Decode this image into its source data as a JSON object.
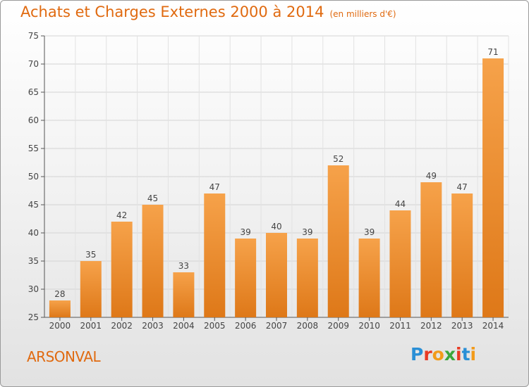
{
  "title": "Achats et Charges Externes 2000 à 2014",
  "unit_note": "(en milliers d'€)",
  "commune": "ARSONVAL",
  "logo": {
    "text": "Proxiti",
    "letters": [
      "P",
      "r",
      "o",
      "x",
      "i",
      "t",
      "i"
    ],
    "colors": [
      "#2a8fd6",
      "#e83a24",
      "#f29b1a",
      "#3aa63a",
      "#e83a24",
      "#2a8fd6",
      "#f29b1a"
    ]
  },
  "colors": {
    "accent": "#e06a10",
    "bar_top": "#f6a24a",
    "bar_bottom": "#de7818"
  },
  "chart_data": {
    "type": "bar",
    "categories": [
      "2000",
      "2001",
      "2002",
      "2003",
      "2004",
      "2005",
      "2006",
      "2007",
      "2008",
      "2009",
      "2010",
      "2011",
      "2012",
      "2013",
      "2014"
    ],
    "values": [
      28,
      35,
      42,
      45,
      33,
      47,
      39,
      40,
      39,
      52,
      39,
      44,
      49,
      47,
      71
    ],
    "data_labels": [
      "28",
      "35",
      "42",
      "45",
      "33",
      "47",
      "39",
      "40",
      "39",
      "52",
      "39",
      "44",
      "49",
      "47",
      "71"
    ],
    "ylim": [
      25,
      75
    ],
    "yticks": [
      25,
      30,
      35,
      40,
      45,
      50,
      55,
      60,
      65,
      70,
      75
    ],
    "grid": true,
    "title": "Achats et Charges Externes 2000 à 2014",
    "xlabel": "",
    "ylabel": ""
  }
}
